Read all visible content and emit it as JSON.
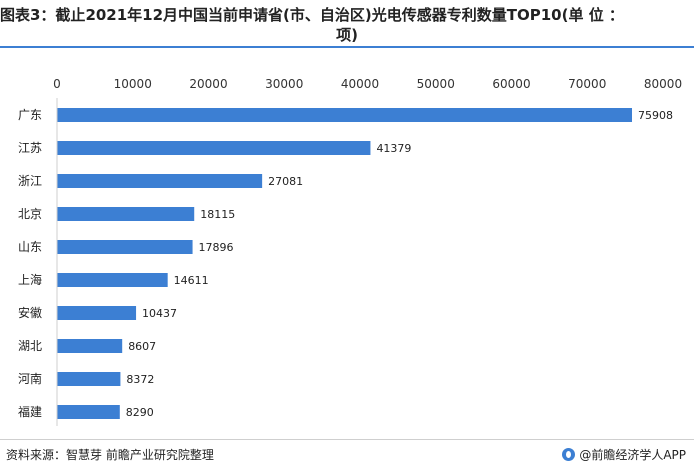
{
  "title": {
    "line1": "图表3：截止2021年12月中国当前申请省(市、自治区)光电传感器专利数量TOP10(单 位 ：",
    "line2": "项)"
  },
  "source": "资料来源：智慧芽 前瞻产业研究院整理",
  "brand": "@前瞻经济学人APP",
  "colors": {
    "bar": "#3c7fd3",
    "title_rule": "#3c7fd3"
  },
  "chart_data": {
    "type": "bar",
    "orientation": "horizontal",
    "categories": [
      "广东",
      "江苏",
      "浙江",
      "北京",
      "山东",
      "上海",
      "安徽",
      "湖北",
      "河南",
      "福建"
    ],
    "values": [
      75908,
      41379,
      27081,
      18115,
      17896,
      14611,
      10437,
      8607,
      8372,
      8290
    ],
    "x_ticks": [
      0,
      10000,
      20000,
      30000,
      40000,
      50000,
      60000,
      70000,
      80000
    ],
    "xlim": [
      0,
      80000
    ],
    "axis_position": "top",
    "grid": false,
    "legend": "none",
    "data_labels": true
  }
}
